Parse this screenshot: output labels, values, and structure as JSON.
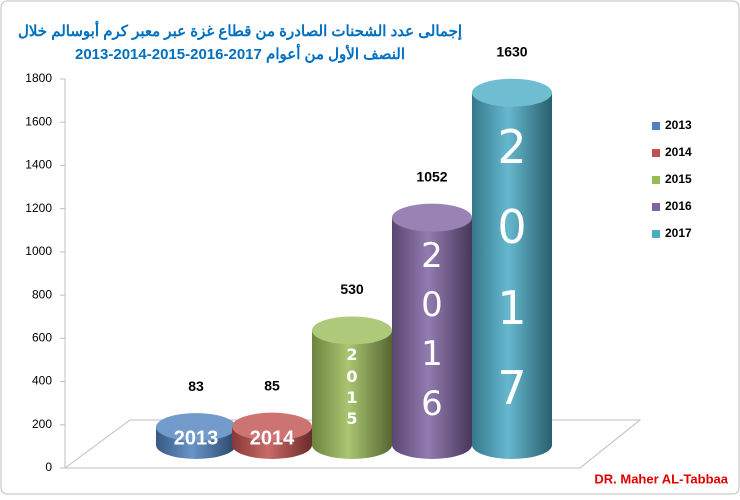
{
  "chart_data": {
    "type": "bar",
    "title": "إجمالى عدد الشحنات الصادرة من قطاع غزة عبر معبر كرم أبوسالم خلال",
    "subtitle": "النصف الأول من أعوام 2017-2016-2015-2014-2013",
    "categories": [
      "2013",
      "2014",
      "2015",
      "2016",
      "2017"
    ],
    "values": [
      83,
      85,
      530,
      1052,
      1630
    ],
    "colors": [
      "#4f81bd",
      "#c0504d",
      "#9bbb59",
      "#8064a2",
      "#4bacc6"
    ],
    "ylim": [
      0,
      1800
    ],
    "yticks": [
      0,
      200,
      400,
      600,
      800,
      1000,
      1200,
      1400,
      1600,
      1800
    ],
    "grid": false,
    "legend": "right",
    "credit": "DR. Maher AL-Tabbaa"
  }
}
